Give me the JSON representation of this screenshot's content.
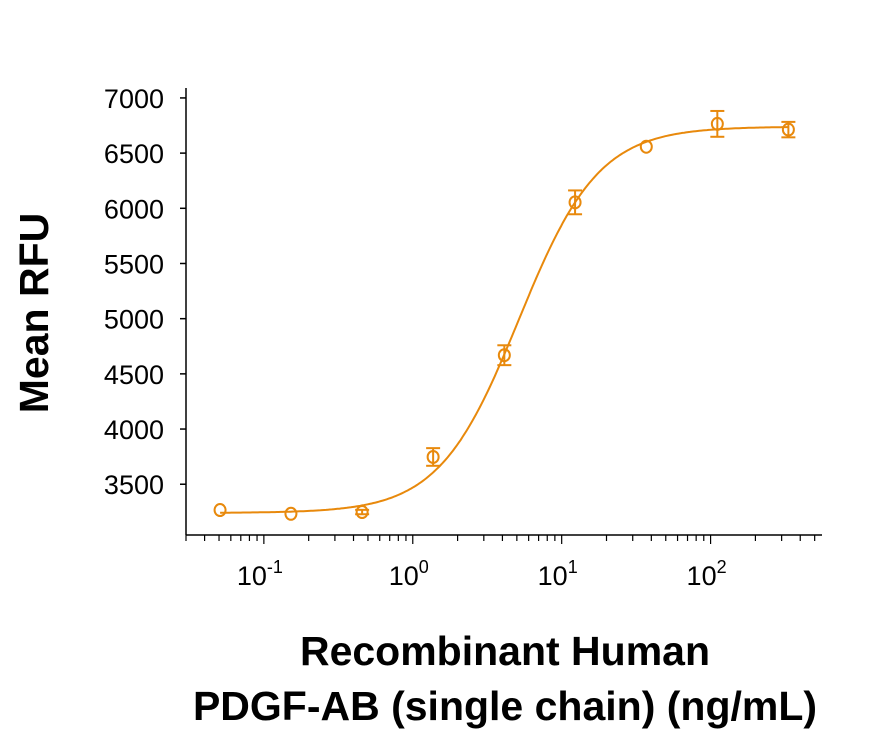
{
  "chart_data": {
    "type": "scatter",
    "title": "",
    "xlabel_lines": [
      "Recombinant Human",
      "PDGF-AB (single chain) (ng/mL)"
    ],
    "ylabel": "Mean RFU",
    "x_scale": "log",
    "xlim": [
      0.03,
      560
    ],
    "ylim": [
      3040,
      7090
    ],
    "x_tick_labels": [
      {
        "base": "10",
        "exp": "-1",
        "value": 0.1
      },
      {
        "base": "10",
        "exp": "0",
        "value": 1
      },
      {
        "base": "10",
        "exp": "1",
        "value": 10
      },
      {
        "base": "10",
        "exp": "2",
        "value": 100
      }
    ],
    "y_ticks": [
      3500,
      4000,
      4500,
      5000,
      5500,
      6000,
      6500,
      7000
    ],
    "y_tick_labels": [
      "3500",
      "4000",
      "4500",
      "5000",
      "5500",
      "6000",
      "6500",
      "7000"
    ],
    "grid": false,
    "color": "#E8890C",
    "marker": "open-circle",
    "points": [
      {
        "x": 0.0508,
        "y": 3266,
        "err": 0
      },
      {
        "x": 0.152,
        "y": 3232,
        "err": 0
      },
      {
        "x": 0.457,
        "y": 3248,
        "err": 20
      },
      {
        "x": 1.37,
        "y": 3747,
        "err": 80
      },
      {
        "x": 4.12,
        "y": 4669,
        "err": 90
      },
      {
        "x": 12.3,
        "y": 6054,
        "err": 108
      },
      {
        "x": 37.0,
        "y": 6558,
        "err": 0
      },
      {
        "x": 111,
        "y": 6765,
        "err": 117
      },
      {
        "x": 333,
        "y": 6713,
        "err": 70
      }
    ],
    "fit": {
      "model": "4PL",
      "bottom": 3240,
      "top": 6740,
      "ec50": 5.15,
      "hill": 1.62
    }
  }
}
